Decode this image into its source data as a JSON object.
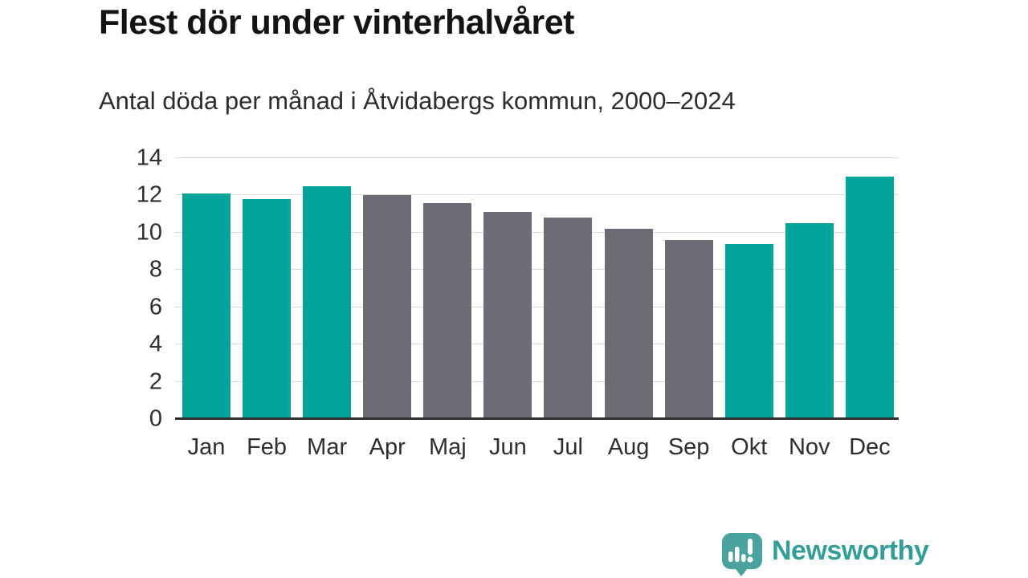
{
  "title": "Flest dör under vinterhalvåret",
  "subtitle": "Antal döda per månad i Åtvidabergs kommun, 2000–2024",
  "brand": {
    "name": "Newsworthy",
    "icon": "newsworthy-speech-bubble-chart-icon",
    "text_color": "#339e97",
    "icon_color": "#4aa39c"
  },
  "chart_data": {
    "type": "bar",
    "title": "Flest dör under vinterhalvåret",
    "subtitle": "Antal döda per månad i Åtvidabergs kommun, 2000–2024",
    "categories": [
      "Jan",
      "Feb",
      "Mar",
      "Apr",
      "Maj",
      "Jun",
      "Jul",
      "Aug",
      "Sep",
      "Okt",
      "Nov",
      "Dec"
    ],
    "values": [
      12.1,
      11.8,
      12.5,
      12.0,
      11.6,
      11.1,
      10.8,
      10.2,
      9.6,
      9.4,
      10.5,
      13.0
    ],
    "bar_color_keys": [
      "highlight",
      "highlight",
      "highlight",
      "muted",
      "muted",
      "muted",
      "muted",
      "muted",
      "muted",
      "highlight",
      "highlight",
      "highlight"
    ],
    "colors": {
      "highlight": "#00a49a",
      "muted": "#6d6c75"
    },
    "xlabel": "",
    "ylabel": "",
    "ylim": [
      0,
      14
    ],
    "yticks": [
      0,
      2,
      4,
      6,
      8,
      10,
      12,
      14
    ],
    "grid": "horizontal-gridlines-behind-bars",
    "legend": "none",
    "axis_line_color": "#2e2e2e",
    "gridline_color": "#d9d9d9"
  }
}
